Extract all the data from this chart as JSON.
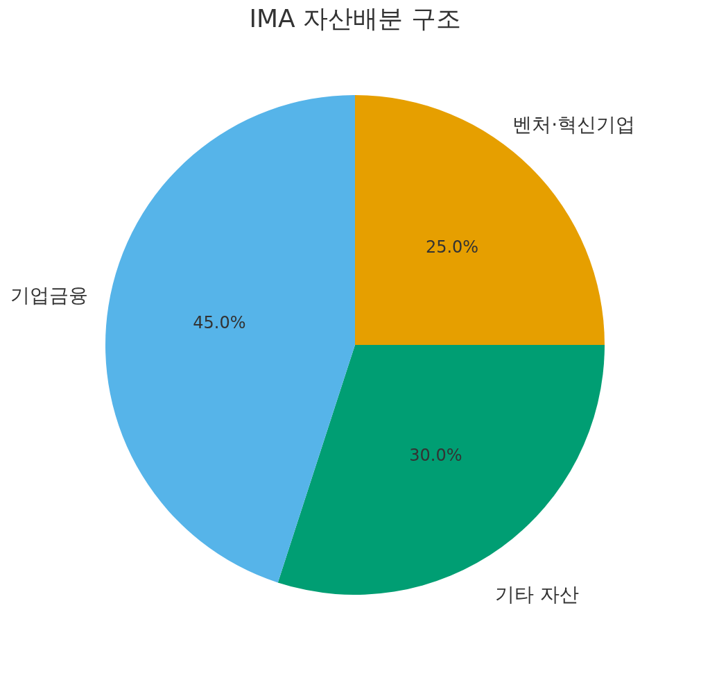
{
  "chart_data": {
    "type": "pie",
    "title": "IMA 자산배분 구조",
    "categories": [
      "벤처·혁신기업",
      "기타 자산",
      "기업금융"
    ],
    "values": [
      25,
      30,
      45
    ],
    "colors": [
      "#e69f00",
      "#009e73",
      "#56b4e9"
    ],
    "value_labels": [
      "25.0%",
      "30.0%",
      "45.0%"
    ],
    "legend": false
  }
}
